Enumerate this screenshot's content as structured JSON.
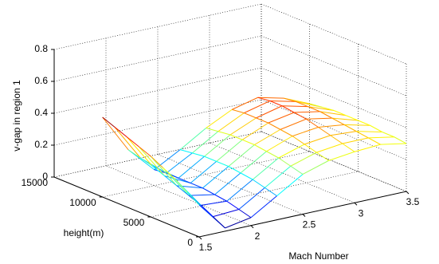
{
  "chart_data": {
    "type": "mesh",
    "xlabel": "Mach Number",
    "ylabel": "height(m)",
    "zlabel": "v-gap in region 1",
    "x": [
      1.5,
      1.75,
      2,
      2.25,
      2.5,
      2.75,
      3,
      3.25,
      3.5
    ],
    "y": [
      0,
      1250,
      2500,
      3750,
      5000,
      6250,
      7500,
      8750,
      10000
    ],
    "z": [
      [
        0.2,
        0.02,
        0.05,
        0.15,
        0.25,
        0.3,
        0.32,
        0.33,
        0.3
      ],
      [
        0.25,
        0.06,
        0.07,
        0.17,
        0.27,
        0.32,
        0.34,
        0.34,
        0.31
      ],
      [
        0.3,
        0.1,
        0.09,
        0.19,
        0.29,
        0.34,
        0.36,
        0.35,
        0.31
      ],
      [
        0.34,
        0.13,
        0.1,
        0.2,
        0.3,
        0.36,
        0.38,
        0.36,
        0.32
      ],
      [
        0.38,
        0.16,
        0.11,
        0.21,
        0.31,
        0.37,
        0.4,
        0.37,
        0.32
      ],
      [
        0.41,
        0.19,
        0.11,
        0.21,
        0.31,
        0.38,
        0.41,
        0.38,
        0.32
      ],
      [
        0.44,
        0.22,
        0.11,
        0.21,
        0.31,
        0.38,
        0.42,
        0.38,
        0.32
      ],
      [
        0.47,
        0.24,
        0.11,
        0.2,
        0.3,
        0.38,
        0.42,
        0.38,
        0.31
      ],
      [
        0.5,
        0.26,
        0.1,
        0.19,
        0.29,
        0.37,
        0.41,
        0.37,
        0.3
      ]
    ],
    "colormap": "jet",
    "grid": true,
    "xlim": [
      1.5,
      3.5
    ],
    "xticks": [
      1.5,
      2,
      2.5,
      3,
      3.5
    ],
    "ylim": [
      0,
      15000
    ],
    "yticks": [
      0,
      5000,
      10000,
      15000
    ],
    "zlim": [
      0,
      0.8
    ],
    "zticks": [
      0,
      0.2,
      0.4,
      0.6,
      0.8
    ]
  }
}
